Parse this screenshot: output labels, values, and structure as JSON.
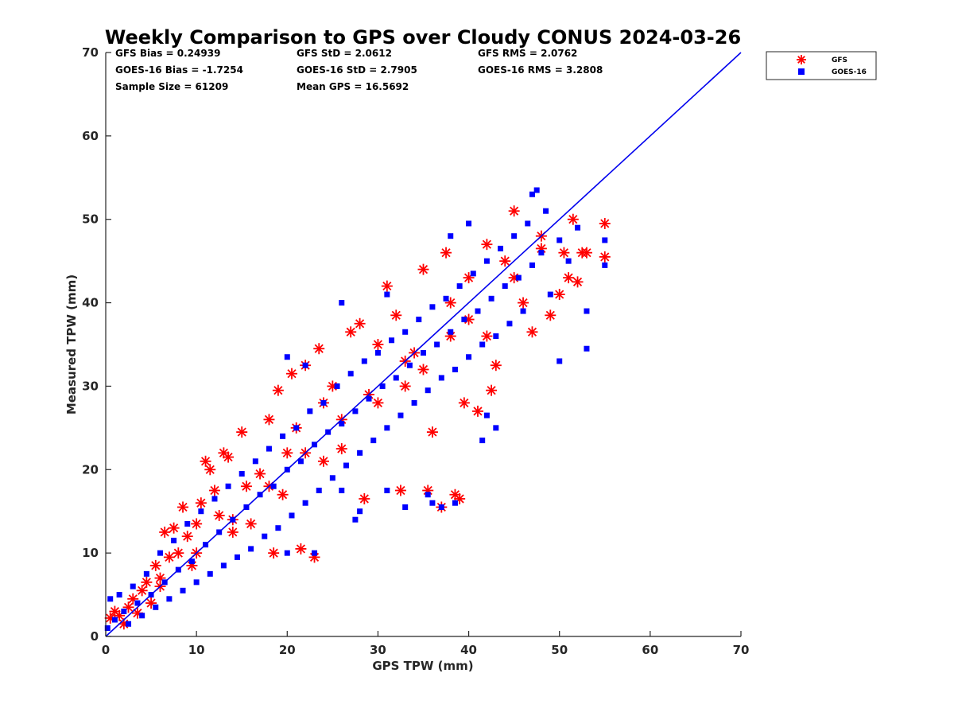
{
  "chart_data": {
    "type": "scatter",
    "title": "Weekly Comparison to GPS over Cloudy CONUS 2024-03-26",
    "xlabel": "GPS TPW (mm)",
    "ylabel": "Measured TPW (mm)",
    "xlim": [
      0,
      70
    ],
    "ylim": [
      0,
      70
    ],
    "xticks": [
      "0",
      "10",
      "20",
      "30",
      "40",
      "50",
      "60",
      "70"
    ],
    "yticks": [
      "0",
      "10",
      "20",
      "30",
      "40",
      "50",
      "60",
      "70"
    ],
    "grid": false,
    "legend_position": "outside-top-right",
    "stats": [
      "GFS Bias = 0.24939",
      "GFS StD = 2.0612",
      "GFS RMS = 2.0762",
      "GOES-16 Bias = -1.7254",
      "GOES-16 StD = 2.7905",
      "GOES-16 RMS = 3.2808",
      "Sample Size = 61209",
      "Mean GPS = 16.5692"
    ],
    "reference_line": {
      "x": [
        0,
        70
      ],
      "y": [
        0,
        70
      ],
      "color": "#0000ee"
    },
    "series": [
      {
        "name": "GFS",
        "marker": "asterisk",
        "color": "#ff0000",
        "points": [
          [
            0.5,
            2.2
          ],
          [
            1.0,
            3.0
          ],
          [
            1.5,
            2.5
          ],
          [
            2.0,
            1.5
          ],
          [
            2.5,
            3.5
          ],
          [
            3.0,
            4.5
          ],
          [
            3.5,
            2.8
          ],
          [
            4.0,
            5.5
          ],
          [
            4.5,
            6.5
          ],
          [
            5.0,
            4.0
          ],
          [
            5.5,
            8.5
          ],
          [
            6.0,
            7.0
          ],
          [
            6.5,
            12.5
          ],
          [
            7.0,
            9.5
          ],
          [
            7.5,
            13.0
          ],
          [
            8.0,
            10.0
          ],
          [
            8.5,
            15.5
          ],
          [
            9.0,
            12.0
          ],
          [
            9.5,
            8.5
          ],
          [
            10.0,
            13.5
          ],
          [
            10.5,
            16.0
          ],
          [
            11.0,
            21.0
          ],
          [
            11.5,
            20.0
          ],
          [
            12.0,
            17.5
          ],
          [
            12.5,
            14.5
          ],
          [
            13.0,
            22.0
          ],
          [
            13.5,
            21.5
          ],
          [
            14.0,
            12.5
          ],
          [
            15.0,
            24.5
          ],
          [
            15.5,
            18.0
          ],
          [
            16.0,
            13.5
          ],
          [
            17.0,
            19.5
          ],
          [
            18.0,
            26.0
          ],
          [
            18.5,
            10.0
          ],
          [
            19.0,
            29.5
          ],
          [
            19.5,
            17.0
          ],
          [
            20.0,
            22.0
          ],
          [
            20.5,
            31.5
          ],
          [
            21.0,
            25.0
          ],
          [
            21.5,
            10.5
          ],
          [
            22.0,
            32.5
          ],
          [
            23.0,
            9.5
          ],
          [
            23.5,
            34.5
          ],
          [
            24.0,
            28.0
          ],
          [
            25.0,
            30.0
          ],
          [
            26.0,
            22.5
          ],
          [
            27.0,
            36.5
          ],
          [
            28.0,
            37.5
          ],
          [
            28.5,
            16.5
          ],
          [
            29.0,
            29.0
          ],
          [
            30.0,
            35.0
          ],
          [
            31.0,
            42.0
          ],
          [
            32.0,
            38.5
          ],
          [
            32.5,
            17.5
          ],
          [
            33.0,
            30.0
          ],
          [
            34.0,
            34.0
          ],
          [
            35.0,
            44.0
          ],
          [
            35.5,
            17.5
          ],
          [
            36.0,
            24.5
          ],
          [
            37.0,
            15.5
          ],
          [
            37.5,
            46.0
          ],
          [
            38.0,
            40.0
          ],
          [
            38.5,
            17.0
          ],
          [
            39.0,
            16.5
          ],
          [
            39.5,
            28.0
          ],
          [
            40.0,
            43.0
          ],
          [
            41.0,
            27.0
          ],
          [
            42.0,
            47.0
          ],
          [
            42.5,
            29.5
          ],
          [
            43.0,
            32.5
          ],
          [
            44.0,
            45.0
          ],
          [
            45.0,
            51.0
          ],
          [
            46.0,
            40.0
          ],
          [
            47.0,
            36.5
          ],
          [
            48.0,
            46.5
          ],
          [
            49.0,
            38.5
          ],
          [
            50.0,
            41.0
          ],
          [
            50.5,
            46.0
          ],
          [
            51.0,
            43.0
          ],
          [
            51.5,
            50.0
          ],
          [
            52.0,
            42.5
          ],
          [
            52.5,
            46.0
          ],
          [
            53.0,
            46.0
          ],
          [
            55.0,
            49.5
          ],
          [
            55.0,
            45.5
          ],
          [
            42.0,
            36.0
          ],
          [
            38.0,
            36.0
          ],
          [
            35.0,
            32.0
          ],
          [
            30.0,
            28.0
          ],
          [
            26.0,
            26.0
          ],
          [
            22.0,
            22.0
          ],
          [
            18.0,
            18.0
          ],
          [
            14.0,
            14.0
          ],
          [
            10.0,
            10.0
          ],
          [
            6.0,
            6.0
          ],
          [
            45.0,
            43.0
          ],
          [
            48.0,
            48.0
          ],
          [
            40.0,
            38.0
          ],
          [
            33.0,
            33.0
          ],
          [
            24.0,
            21.0
          ]
        ]
      },
      {
        "name": "GOES-16",
        "marker": "square",
        "color": "#0000ff",
        "points": [
          [
            0.2,
            1.0
          ],
          [
            0.5,
            4.5
          ],
          [
            1.0,
            2.0
          ],
          [
            1.5,
            5.0
          ],
          [
            2.0,
            3.0
          ],
          [
            2.5,
            1.5
          ],
          [
            3.0,
            6.0
          ],
          [
            3.5,
            4.0
          ],
          [
            4.0,
            2.5
          ],
          [
            4.5,
            7.5
          ],
          [
            5.0,
            5.0
          ],
          [
            5.5,
            3.5
          ],
          [
            6.0,
            10.0
          ],
          [
            6.5,
            6.5
          ],
          [
            7.0,
            4.5
          ],
          [
            7.5,
            11.5
          ],
          [
            8.0,
            8.0
          ],
          [
            8.5,
            5.5
          ],
          [
            9.0,
            13.5
          ],
          [
            9.5,
            9.0
          ],
          [
            10.0,
            6.5
          ],
          [
            10.5,
            15.0
          ],
          [
            11.0,
            11.0
          ],
          [
            11.5,
            7.5
          ],
          [
            12.0,
            16.5
          ],
          [
            12.5,
            12.5
          ],
          [
            13.0,
            8.5
          ],
          [
            13.5,
            18.0
          ],
          [
            14.0,
            14.0
          ],
          [
            14.5,
            9.5
          ],
          [
            15.0,
            19.5
          ],
          [
            15.5,
            15.5
          ],
          [
            16.0,
            10.5
          ],
          [
            16.5,
            21.0
          ],
          [
            17.0,
            17.0
          ],
          [
            17.5,
            12.0
          ],
          [
            18.0,
            22.5
          ],
          [
            18.5,
            18.0
          ],
          [
            19.0,
            13.0
          ],
          [
            19.5,
            24.0
          ],
          [
            20.0,
            20.0
          ],
          [
            20.5,
            14.5
          ],
          [
            21.0,
            25.0
          ],
          [
            21.5,
            21.0
          ],
          [
            22.0,
            16.0
          ],
          [
            22.5,
            27.0
          ],
          [
            23.0,
            23.0
          ],
          [
            23.5,
            17.5
          ],
          [
            24.0,
            28.0
          ],
          [
            24.5,
            24.5
          ],
          [
            25.0,
            19.0
          ],
          [
            25.5,
            30.0
          ],
          [
            26.0,
            25.5
          ],
          [
            26.5,
            20.5
          ],
          [
            27.0,
            31.5
          ],
          [
            27.5,
            27.0
          ],
          [
            28.0,
            22.0
          ],
          [
            28.5,
            33.0
          ],
          [
            29.0,
            28.5
          ],
          [
            29.5,
            23.5
          ],
          [
            30.0,
            34.0
          ],
          [
            30.5,
            30.0
          ],
          [
            31.0,
            25.0
          ],
          [
            31.5,
            35.5
          ],
          [
            32.0,
            31.0
          ],
          [
            32.5,
            26.5
          ],
          [
            33.0,
            36.5
          ],
          [
            33.5,
            32.5
          ],
          [
            34.0,
            28.0
          ],
          [
            34.5,
            38.0
          ],
          [
            35.0,
            34.0
          ],
          [
            35.5,
            29.5
          ],
          [
            36.0,
            39.5
          ],
          [
            36.5,
            35.0
          ],
          [
            37.0,
            31.0
          ],
          [
            37.5,
            40.5
          ],
          [
            38.0,
            36.5
          ],
          [
            38.5,
            32.0
          ],
          [
            39.0,
            42.0
          ],
          [
            39.5,
            38.0
          ],
          [
            40.0,
            33.5
          ],
          [
            40.5,
            43.5
          ],
          [
            41.0,
            39.0
          ],
          [
            41.5,
            35.0
          ],
          [
            42.0,
            45.0
          ],
          [
            42.5,
            40.5
          ],
          [
            43.0,
            36.0
          ],
          [
            43.5,
            46.5
          ],
          [
            44.0,
            42.0
          ],
          [
            44.5,
            37.5
          ],
          [
            45.0,
            48.0
          ],
          [
            45.5,
            43.0
          ],
          [
            46.0,
            39.0
          ],
          [
            46.5,
            49.5
          ],
          [
            47.0,
            44.5
          ],
          [
            47.5,
            53.5
          ],
          [
            48.0,
            46.0
          ],
          [
            48.5,
            51.0
          ],
          [
            49.0,
            41.0
          ],
          [
            50.0,
            47.5
          ],
          [
            51.0,
            45.0
          ],
          [
            52.0,
            49.0
          ],
          [
            53.0,
            39.0
          ],
          [
            53.0,
            34.5
          ],
          [
            55.0,
            47.5
          ],
          [
            55.0,
            44.5
          ],
          [
            37.0,
            15.5
          ],
          [
            38.5,
            16.0
          ],
          [
            35.5,
            17.0
          ],
          [
            33.0,
            15.5
          ],
          [
            31.0,
            17.5
          ],
          [
            28.0,
            15.0
          ],
          [
            27.5,
            14.0
          ],
          [
            26.0,
            17.5
          ],
          [
            23.0,
            10.0
          ],
          [
            20.0,
            10.0
          ],
          [
            36.0,
            16.0
          ],
          [
            43.0,
            25.0
          ],
          [
            42.0,
            26.5
          ],
          [
            50.0,
            33.0
          ],
          [
            41.5,
            23.5
          ],
          [
            47.0,
            53.0
          ],
          [
            40.0,
            49.5
          ],
          [
            38.0,
            48.0
          ],
          [
            26.0,
            40.0
          ],
          [
            22.0,
            32.5
          ],
          [
            20.0,
            33.5
          ],
          [
            31.0,
            41.0
          ]
        ]
      }
    ]
  }
}
